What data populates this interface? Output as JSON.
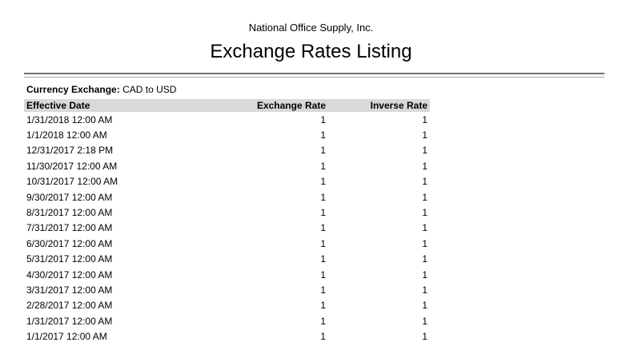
{
  "report": {
    "company": "National Office Supply, Inc.",
    "title": "Exchange Rates Listing",
    "filter_label": "Currency Exchange:",
    "filter_value": "CAD to USD"
  },
  "table": {
    "columns": [
      "Effective Date",
      "Exchange Rate",
      "Inverse Rate"
    ],
    "rows": [
      {
        "date": "1/31/2018 12:00 AM",
        "rate": "1",
        "inverse": "1"
      },
      {
        "date": "1/1/2018 12:00 AM",
        "rate": "1",
        "inverse": "1"
      },
      {
        "date": "12/31/2017 2:18 PM",
        "rate": "1",
        "inverse": "1"
      },
      {
        "date": "11/30/2017 12:00 AM",
        "rate": "1",
        "inverse": "1"
      },
      {
        "date": "10/31/2017 12:00 AM",
        "rate": "1",
        "inverse": "1"
      },
      {
        "date": "9/30/2017 12:00 AM",
        "rate": "1",
        "inverse": "1"
      },
      {
        "date": "8/31/2017 12:00 AM",
        "rate": "1",
        "inverse": "1"
      },
      {
        "date": "7/31/2017 12:00 AM",
        "rate": "1",
        "inverse": "1"
      },
      {
        "date": "6/30/2017 12:00 AM",
        "rate": "1",
        "inverse": "1"
      },
      {
        "date": "5/31/2017 12:00 AM",
        "rate": "1",
        "inverse": "1"
      },
      {
        "date": "4/30/2017 12:00 AM",
        "rate": "1",
        "inverse": "1"
      },
      {
        "date": "3/31/2017 12:00 AM",
        "rate": "1",
        "inverse": "1"
      },
      {
        "date": "2/28/2017 12:00 AM",
        "rate": "1",
        "inverse": "1"
      },
      {
        "date": "1/31/2017 12:00 AM",
        "rate": "1",
        "inverse": "1"
      },
      {
        "date": "1/1/2017 12:00 AM",
        "rate": "1",
        "inverse": "1"
      }
    ]
  },
  "colors": {
    "header_bg": "#d9d9d9",
    "rule_dark": "#737373",
    "rule_light": "#a6a6a6",
    "text_color": "#000000"
  }
}
